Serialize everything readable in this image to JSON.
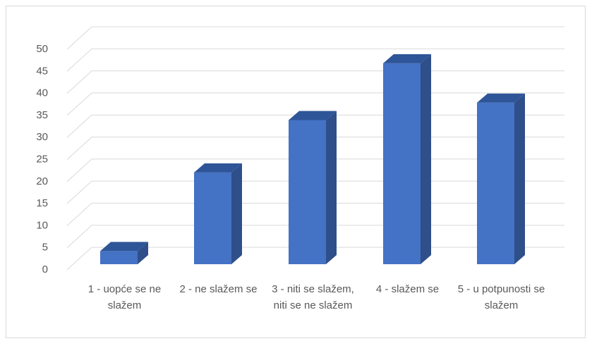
{
  "chart_data": {
    "type": "bar3d",
    "categories": [
      "1 - uopće se ne slažem",
      "2 - ne slažem se",
      "3 - niti se slažem, niti se ne slažem",
      "4 - slažem se",
      "5 - u potpunosti se slažem"
    ],
    "values": [
      3,
      21,
      33,
      46,
      37
    ],
    "color": "#4472c4",
    "ylim": [
      0,
      50
    ],
    "yticks": [
      0,
      5,
      10,
      15,
      20,
      25,
      30,
      35,
      40,
      45,
      50
    ],
    "grid": true
  }
}
